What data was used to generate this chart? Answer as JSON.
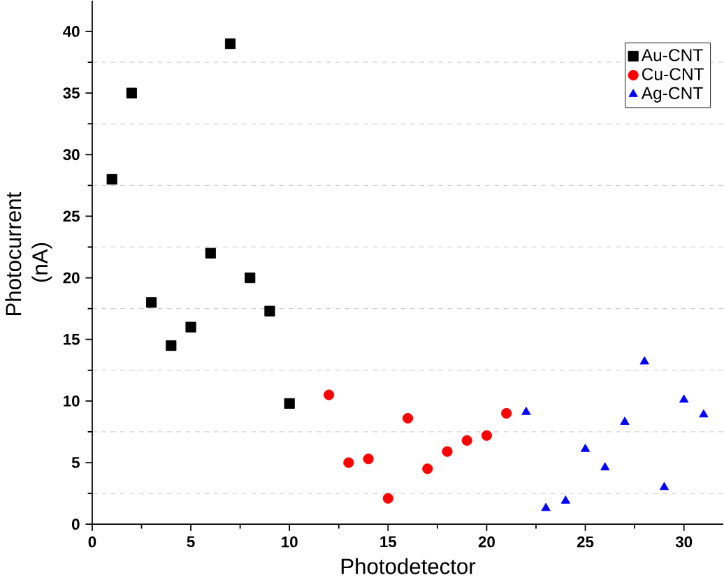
{
  "chart_data": {
    "type": "scatter",
    "xlabel": "Photodetector",
    "ylabel": "Photocurrent (nA)",
    "xlim": [
      0,
      32
    ],
    "ylim": [
      0,
      42.5
    ],
    "xticks": [
      0,
      5,
      10,
      15,
      20,
      25,
      30
    ],
    "yticks": [
      0,
      5,
      10,
      15,
      20,
      25,
      30,
      35,
      40
    ],
    "grid": "y",
    "legend": "top right",
    "series": [
      {
        "name": "Au-CNT",
        "color": "#000000",
        "marker": "square",
        "x": [
          1,
          2,
          3,
          4,
          5,
          6,
          7,
          8,
          9,
          10
        ],
        "values": [
          28,
          35,
          18,
          14.5,
          16,
          22,
          39,
          20,
          17.3,
          9.8
        ]
      },
      {
        "name": "Cu-CNT",
        "color": "#ff0000",
        "marker": "circle",
        "x": [
          12,
          13,
          14,
          15,
          16,
          17,
          18,
          19,
          20,
          21
        ],
        "values": [
          10.5,
          5.0,
          5.3,
          2.1,
          8.6,
          4.5,
          5.9,
          6.8,
          7.2,
          9.0
        ]
      },
      {
        "name": "Ag-CNT",
        "color": "#0000ff",
        "marker": "triangle",
        "x": [
          22,
          23,
          24,
          25,
          26,
          27,
          28,
          29,
          30,
          31
        ],
        "values": [
          9.1,
          1.3,
          1.9,
          6.1,
          4.6,
          8.3,
          13.2,
          3.0,
          10.1,
          8.9
        ]
      }
    ]
  }
}
